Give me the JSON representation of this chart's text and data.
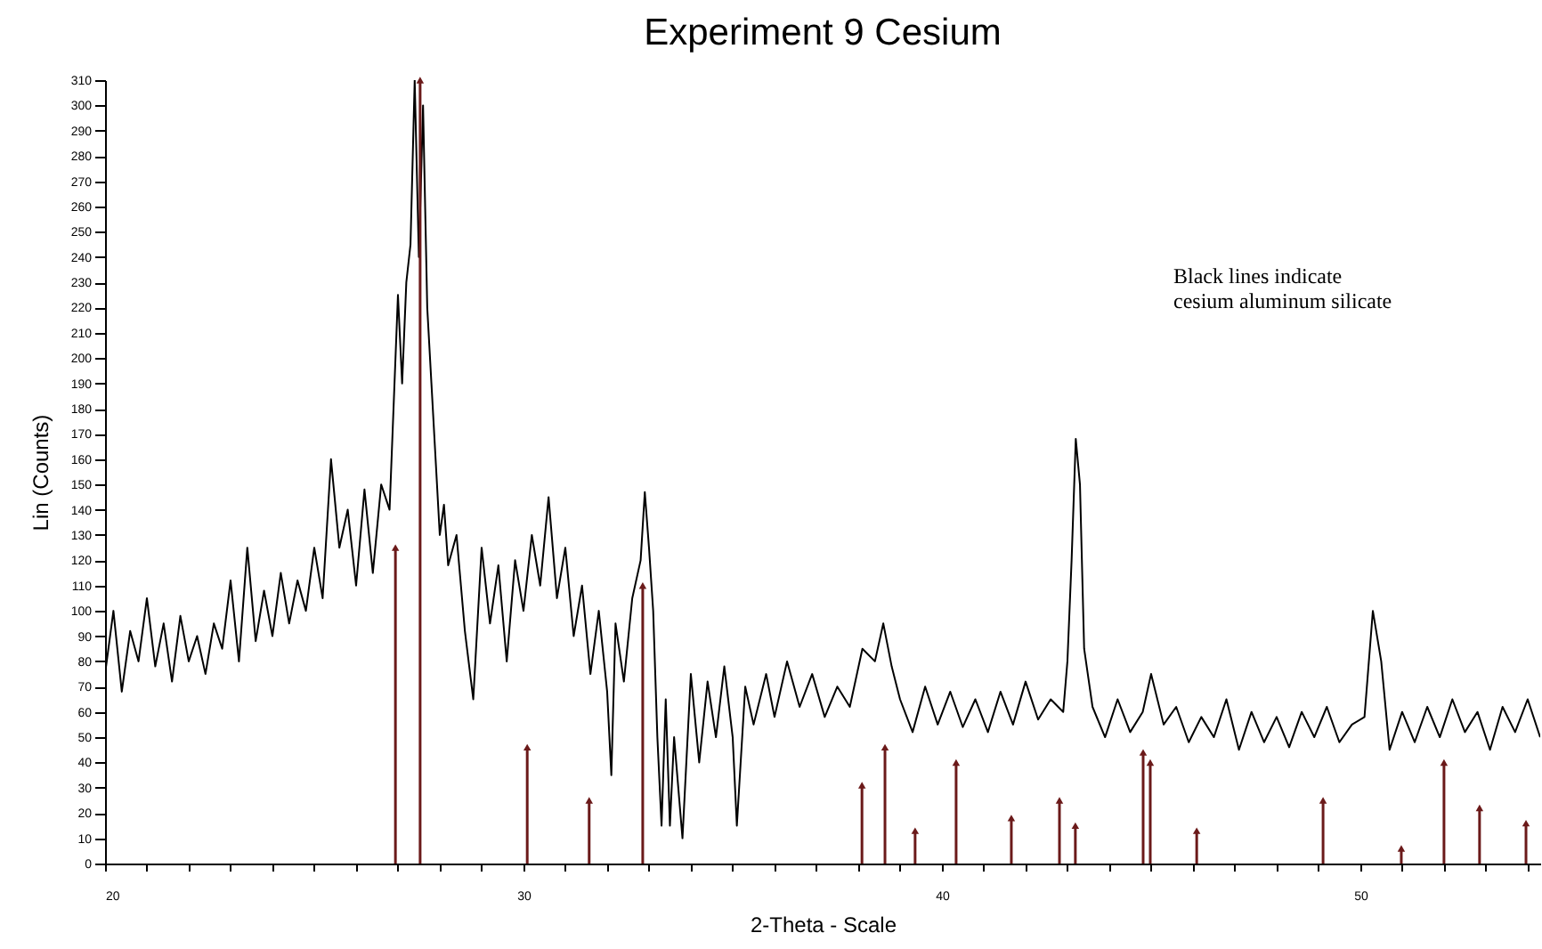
{
  "chart_data": {
    "type": "line",
    "title": "Experiment 9 Cesium",
    "xlabel": "2-Theta - Scale",
    "ylabel": "Lin (Counts)",
    "annotations": [
      "Black lines indicate\ncesium aluminum silicate"
    ],
    "xlim": [
      20,
      54.3
    ],
    "ylim": [
      0,
      310
    ],
    "xticks": [
      20,
      {
        "value": 21,
        "label": null
      },
      {
        "value": 22,
        "label": null
      },
      {
        "value": 23,
        "label": null
      },
      {
        "value": 24,
        "label": null
      },
      {
        "value": 25,
        "label": null
      },
      {
        "value": 26,
        "label": null
      },
      {
        "value": 27,
        "label": null
      },
      {
        "value": 28,
        "label": null
      },
      {
        "value": 29,
        "label": null
      },
      30,
      {
        "value": 31,
        "label": null
      },
      {
        "value": 32,
        "label": null
      },
      {
        "value": 33,
        "label": null
      },
      {
        "value": 34,
        "label": null
      },
      {
        "value": 35,
        "label": null
      },
      {
        "value": 36,
        "label": null
      },
      {
        "value": 37,
        "label": null
      },
      {
        "value": 38,
        "label": null
      },
      {
        "value": 39,
        "label": null
      },
      40,
      {
        "value": 41,
        "label": null
      },
      {
        "value": 42,
        "label": null
      },
      {
        "value": 43,
        "label": null
      },
      {
        "value": 44,
        "label": null
      },
      {
        "value": 45,
        "label": null
      },
      {
        "value": 46,
        "label": null
      },
      {
        "value": 47,
        "label": null
      },
      {
        "value": 48,
        "label": null
      },
      {
        "value": 49,
        "label": null
      },
      50,
      {
        "value": 51,
        "label": null
      },
      {
        "value": 52,
        "label": null
      },
      {
        "value": 53,
        "label": null
      },
      {
        "value": 54,
        "label": null
      }
    ],
    "yticks": [
      0,
      10,
      20,
      30,
      40,
      50,
      60,
      70,
      80,
      90,
      100,
      110,
      120,
      130,
      140,
      150,
      160,
      170,
      180,
      190,
      200,
      210,
      220,
      230,
      240,
      250,
      260,
      270,
      280,
      290,
      300,
      310
    ],
    "grid": false,
    "series": [
      {
        "color": "#000000",
        "line_style": "solid",
        "x": [
          20.0,
          20.2,
          20.4,
          20.6,
          20.8,
          21.0,
          21.2,
          21.4,
          21.6,
          21.8,
          22.0,
          22.2,
          22.4,
          22.6,
          22.8,
          23.0,
          23.2,
          23.4,
          23.6,
          23.8,
          24.0,
          24.2,
          24.4,
          24.6,
          24.8,
          25.0,
          25.2,
          25.4,
          25.6,
          25.8,
          26.0,
          26.2,
          26.4,
          26.6,
          26.8,
          27.0,
          27.1,
          27.2,
          27.3,
          27.4,
          27.5,
          27.6,
          27.7,
          27.8,
          27.9,
          28.0,
          28.1,
          28.2,
          28.4,
          28.6,
          28.8,
          29.0,
          29.2,
          29.4,
          29.6,
          29.8,
          30.0,
          30.2,
          30.4,
          30.6,
          30.8,
          31.0,
          31.2,
          31.4,
          31.6,
          31.8,
          32.0,
          32.1,
          32.2,
          32.4,
          32.6,
          32.8,
          32.9,
          33.0,
          33.1,
          33.2,
          33.3,
          33.4,
          33.5,
          33.6,
          33.8,
          34.0,
          34.2,
          34.4,
          34.6,
          34.8,
          35.0,
          35.1,
          35.3,
          35.5,
          35.8,
          36.0,
          36.3,
          36.6,
          36.9,
          37.2,
          37.5,
          37.8,
          38.1,
          38.4,
          38.6,
          38.8,
          39.0,
          39.3,
          39.6,
          39.9,
          40.2,
          40.5,
          40.8,
          41.1,
          41.4,
          41.7,
          42.0,
          42.3,
          42.6,
          42.9,
          43.0,
          43.1,
          43.2,
          43.3,
          43.4,
          43.6,
          43.9,
          44.2,
          44.5,
          44.8,
          45.0,
          45.3,
          45.6,
          45.9,
          46.2,
          46.5,
          46.8,
          47.1,
          47.4,
          47.7,
          48.0,
          48.3,
          48.6,
          48.9,
          49.2,
          49.5,
          49.8,
          50.1,
          50.3,
          50.5,
          50.7,
          51.0,
          51.3,
          51.6,
          51.9,
          52.2,
          52.5,
          52.8,
          53.1,
          53.4,
          53.7,
          54.0,
          54.3
        ],
        "values": [
          75,
          100,
          68,
          92,
          80,
          105,
          78,
          95,
          72,
          98,
          80,
          90,
          75,
          95,
          85,
          112,
          80,
          125,
          88,
          108,
          90,
          115,
          95,
          112,
          100,
          125,
          105,
          160,
          125,
          140,
          110,
          148,
          115,
          150,
          140,
          225,
          190,
          230,
          245,
          310,
          240,
          300,
          220,
          190,
          160,
          130,
          142,
          118,
          130,
          92,
          65,
          125,
          95,
          118,
          80,
          120,
          100,
          130,
          110,
          145,
          105,
          125,
          90,
          110,
          75,
          100,
          68,
          35,
          95,
          72,
          105,
          120,
          147,
          125,
          100,
          50,
          15,
          65,
          15,
          50,
          10,
          75,
          40,
          72,
          50,
          78,
          50,
          15,
          70,
          55,
          75,
          58,
          80,
          62,
          75,
          58,
          70,
          62,
          85,
          80,
          95,
          78,
          65,
          52,
          70,
          55,
          68,
          54,
          65,
          52,
          68,
          55,
          72,
          57,
          65,
          60,
          80,
          120,
          168,
          150,
          85,
          62,
          50,
          65,
          52,
          60,
          75,
          55,
          62,
          48,
          58,
          50,
          65,
          45,
          60,
          48,
          58,
          46,
          60,
          50,
          62,
          48,
          55,
          58,
          100,
          80,
          45,
          60,
          48,
          62,
          50,
          65,
          52,
          60,
          45,
          62,
          52,
          65,
          50
        ]
      },
      {
        "type": "lollipop",
        "color": "#6b1a1a",
        "marker": "triangle",
        "x": [
          26.94,
          27.53,
          30.09,
          31.57,
          32.85,
          38.09,
          38.64,
          39.36,
          40.34,
          41.66,
          42.81,
          43.19,
          44.81,
          44.98,
          46.09,
          49.11,
          50.98,
          52.0,
          52.85,
          53.96
        ],
        "values": [
          125,
          310,
          46,
          25,
          110,
          31,
          46,
          13,
          40,
          18,
          25,
          15,
          44,
          40,
          13,
          25,
          6,
          40,
          22,
          16
        ]
      }
    ]
  }
}
